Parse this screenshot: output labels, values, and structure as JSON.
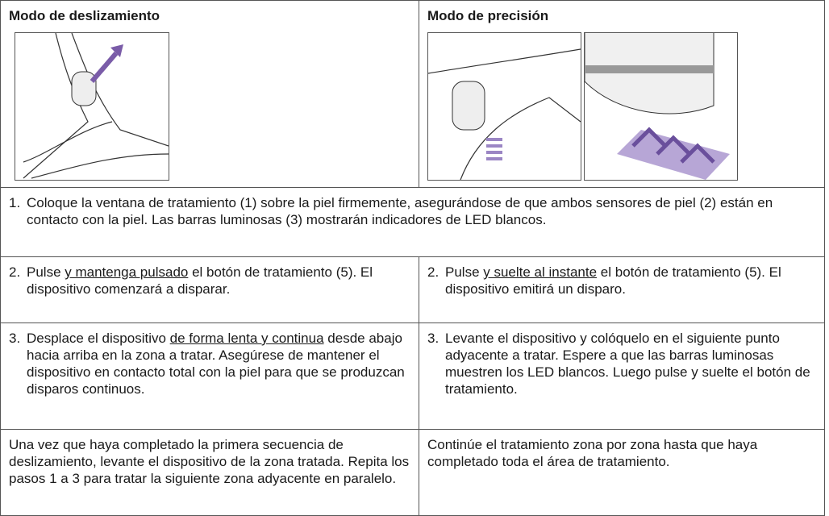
{
  "table": {
    "header": [
      "Modo de deslizamiento",
      "Modo de precisión"
    ],
    "step1": {
      "number": "1.",
      "segments": [
        {
          "text": "Coloque la ventana de tratamiento (1) sobre la piel firmemente, asegurándose de que ambos sensores de piel (2) están en contacto con la piel. Las barras luminosas (3) mostrarán indicadores de LED blancos."
        }
      ]
    },
    "rows": [
      [
        {
          "number": "2.",
          "segments": [
            {
              "text": "Pulse "
            },
            {
              "text": "y mantenga pulsado",
              "underline": true
            },
            {
              "text": " el botón de tratamiento (5). El dispositivo comenzará a disparar."
            }
          ]
        },
        {
          "number": "2.",
          "segments": [
            {
              "text": "Pulse "
            },
            {
              "text": "y suelte al instante",
              "underline": true
            },
            {
              "text": " el botón de tratamiento (5). El dispositivo emitirá un disparo."
            }
          ]
        }
      ],
      [
        {
          "number": "3.",
          "segments": [
            {
              "text": "Desplace el dispositivo "
            },
            {
              "text": "de forma lenta y continua",
              "underline": true
            },
            {
              "text": " desde abajo hacia arriba en la zona a tratar. Asegúrese de mantener el dispositivo en contacto total con la piel para que se produzcan disparos continuos."
            }
          ]
        },
        {
          "number": "3.",
          "segments": [
            {
              "text": "Levante el dispositivo y colóquelo en el siguiente punto adyacente a tratar. Espere a que las barras luminosas muestren los LED blancos. Luego pulse y suelte el botón de tratamiento."
            }
          ]
        }
      ],
      [
        {
          "segments": [
            {
              "text": "Una vez que haya completado la primera secuencia de deslizamiento, levante el dispositivo de la zona tratada. Repita los pasos 1 a 3 para tratar la siguiente zona adyacente en paralelo."
            }
          ]
        },
        {
          "segments": [
            {
              "text": "Continúe el tratamiento zona por zona hasta que haya completado toda el área de tratamiento."
            }
          ]
        }
      ]
    ]
  }
}
